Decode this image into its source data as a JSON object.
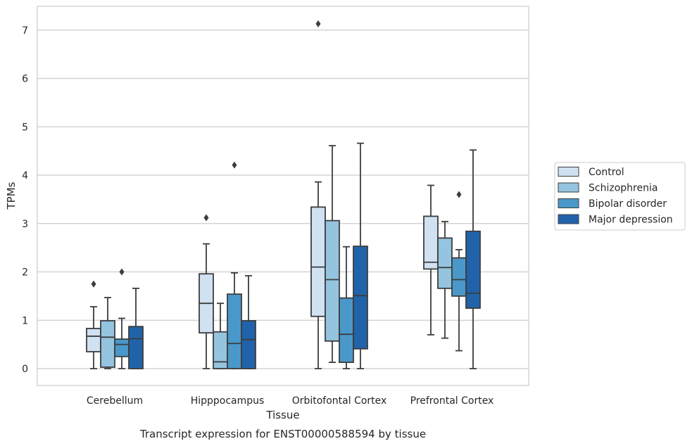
{
  "chart_data": {
    "type": "boxplot",
    "caption": "Transcript expression for ENST00000588594 by tissue",
    "xlabel": "Tissue",
    "ylabel": "TPMs",
    "ylim": [
      -0.35,
      7.5
    ],
    "yticks": [
      0,
      1,
      2,
      3,
      4,
      5,
      6,
      7
    ],
    "grid": "horizontal",
    "legend_position": "right",
    "categories": [
      "Cerebellum",
      "Hipppocampus",
      "Orbitofontal Cortex",
      "Prefrontal Cortex"
    ],
    "series": [
      {
        "name": "Control",
        "color": "#d0e1f2",
        "boxes": [
          {
            "whislo": 0.0,
            "q1": 0.35,
            "med": 0.67,
            "q3": 0.83,
            "whishi": 1.28,
            "fliers": [
              1.75
            ]
          },
          {
            "whislo": 0.0,
            "q1": 0.74,
            "med": 1.35,
            "q3": 1.96,
            "whishi": 2.58,
            "fliers": [
              3.12
            ]
          },
          {
            "whislo": 0.0,
            "q1": 1.08,
            "med": 2.1,
            "q3": 3.34,
            "whishi": 3.86,
            "fliers": [
              7.13
            ]
          },
          {
            "whislo": 0.7,
            "q1": 2.06,
            "med": 2.2,
            "q3": 3.15,
            "whishi": 3.79,
            "fliers": []
          }
        ]
      },
      {
        "name": "Schizophrenia",
        "color": "#94c4df",
        "boxes": [
          {
            "whislo": 0.0,
            "q1": 0.03,
            "med": 0.65,
            "q3": 0.99,
            "whishi": 1.47,
            "fliers": []
          },
          {
            "whislo": 0.0,
            "q1": 0.0,
            "med": 0.14,
            "q3": 0.76,
            "whishi": 1.35,
            "fliers": []
          },
          {
            "whislo": 0.13,
            "q1": 0.57,
            "med": 1.84,
            "q3": 3.06,
            "whishi": 4.61,
            "fliers": []
          },
          {
            "whislo": 0.63,
            "q1": 1.66,
            "med": 2.09,
            "q3": 2.7,
            "whishi": 3.04,
            "fliers": []
          }
        ]
      },
      {
        "name": "Bipolar disorder",
        "color": "#4a98c9",
        "boxes": [
          {
            "whislo": 0.0,
            "q1": 0.25,
            "med": 0.5,
            "q3": 0.61,
            "whishi": 1.04,
            "fliers": [
              2.0
            ]
          },
          {
            "whislo": 0.0,
            "q1": 0.0,
            "med": 0.52,
            "q3": 1.54,
            "whishi": 1.98,
            "fliers": [
              4.21
            ]
          },
          {
            "whislo": 0.0,
            "q1": 0.13,
            "med": 0.71,
            "q3": 1.46,
            "whishi": 2.52,
            "fliers": []
          },
          {
            "whislo": 0.37,
            "q1": 1.5,
            "med": 1.84,
            "q3": 2.29,
            "whishi": 2.46,
            "fliers": [
              3.6
            ]
          }
        ]
      },
      {
        "name": "Major depression",
        "color": "#2163aa",
        "boxes": [
          {
            "whislo": 0.0,
            "q1": 0.0,
            "med": 0.62,
            "q3": 0.87,
            "whishi": 1.66,
            "fliers": []
          },
          {
            "whislo": 0.0,
            "q1": 0.0,
            "med": 0.6,
            "q3": 0.99,
            "whishi": 1.92,
            "fliers": []
          },
          {
            "whislo": 0.0,
            "q1": 0.41,
            "med": 1.51,
            "q3": 2.53,
            "whishi": 4.66,
            "fliers": []
          },
          {
            "whislo": 0.0,
            "q1": 1.25,
            "med": 1.56,
            "q3": 2.84,
            "whishi": 4.52,
            "fliers": []
          }
        ]
      }
    ]
  }
}
